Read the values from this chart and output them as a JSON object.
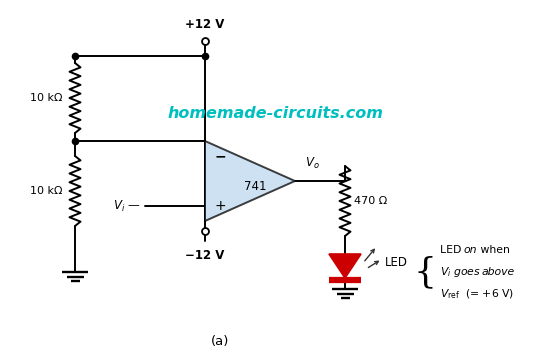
{
  "title": "(a)",
  "watermark": "homemade-circuits.com",
  "watermark_color": "#00BFBF",
  "background_color": "#ffffff",
  "line_color": "#000000",
  "op_amp_fill": "#BDD7EE",
  "op_amp_label": "741",
  "led_color": "#CC0000",
  "annotations": {
    "v12_pos": "+12 V",
    "v12_neg": "−12 V",
    "r1": "10 kΩ",
    "r2": "10 kΩ",
    "r3": "470 Ω",
    "minus": "−",
    "plus": "+",
    "led_label": "LED"
  },
  "figsize": [
    5.51,
    3.56
  ],
  "dpi": 100,
  "xlim": [
    0,
    5.51
  ],
  "ylim": [
    0,
    3.56
  ]
}
